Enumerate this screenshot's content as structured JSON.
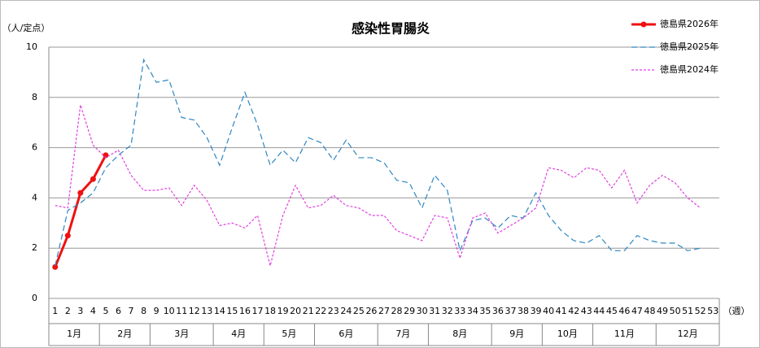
{
  "chart_data": {
    "type": "line",
    "title": "感染性胃腸炎",
    "y_label": "（人/定点）",
    "x_label": "（週）",
    "categories": [
      "1",
      "2",
      "3",
      "4",
      "5",
      "6",
      "7",
      "8",
      "9",
      "10",
      "11",
      "12",
      "13",
      "14",
      "15",
      "16",
      "17",
      "18",
      "19",
      "20",
      "21",
      "22",
      "23",
      "24",
      "25",
      "26",
      "27",
      "28",
      "29",
      "30",
      "31",
      "32",
      "33",
      "34",
      "35",
      "36",
      "37",
      "38",
      "39",
      "40",
      "41",
      "42",
      "43",
      "44",
      "45",
      "46",
      "47",
      "48",
      "49",
      "50",
      "51",
      "52",
      "53"
    ],
    "month_of_week": [
      "1月",
      "1月",
      "1月",
      "1月",
      "2月",
      "2月",
      "2月",
      "2月",
      "3月",
      "3月",
      "3月",
      "3月",
      "3月",
      "4月",
      "4月",
      "4月",
      "4月",
      "5月",
      "5月",
      "5月",
      "5月",
      "6月",
      "6月",
      "6月",
      "6月",
      "6月",
      "7月",
      "7月",
      "7月",
      "7月",
      "8月",
      "8月",
      "8月",
      "8月",
      "8月",
      "9月",
      "9月",
      "9月",
      "9月",
      "10月",
      "10月",
      "10月",
      "10月",
      "11月",
      "11月",
      "11月",
      "11月",
      "11月",
      "12月",
      "12月",
      "12月",
      "12月",
      "12月"
    ],
    "ylim": [
      0,
      10
    ],
    "yticks": [
      0,
      2,
      4,
      6,
      8,
      10
    ],
    "grid": true,
    "legend": "top-right",
    "series": [
      {
        "name": "徳島県2026年",
        "color": "#ee1111",
        "style": "solid",
        "values": [
          1.25,
          2.5,
          4.2,
          4.75,
          5.7,
          null,
          null,
          null,
          null,
          null,
          null,
          null,
          null,
          null,
          null,
          null,
          null,
          null,
          null,
          null,
          null,
          null,
          null,
          null,
          null,
          null,
          null,
          null,
          null,
          null,
          null,
          null,
          null,
          null,
          null,
          null,
          null,
          null,
          null,
          null,
          null,
          null,
          null,
          null,
          null,
          null,
          null,
          null,
          null,
          null,
          null,
          null,
          null
        ]
      },
      {
        "name": "徳島県2025年",
        "color": "#2e86c1",
        "style": "dashed",
        "values": [
          1.3,
          3.5,
          3.8,
          4.2,
          5.2,
          5.7,
          6.1,
          9.5,
          8.6,
          8.7,
          7.2,
          7.1,
          6.4,
          5.3,
          6.8,
          8.2,
          6.9,
          5.3,
          5.9,
          5.4,
          6.4,
          6.2,
          5.5,
          6.3,
          5.6,
          5.6,
          5.4,
          4.7,
          4.6,
          3.6,
          4.9,
          4.3,
          1.9,
          3.1,
          3.2,
          2.8,
          3.3,
          3.2,
          4.2,
          3.3,
          2.7,
          2.3,
          2.2,
          2.5,
          1.9,
          1.9,
          2.5,
          2.3,
          2.2,
          2.2,
          1.9,
          2.0,
          null
        ]
      },
      {
        "name": "徳島県2024年",
        "color": "#e040e0",
        "style": "dotted",
        "values": [
          3.7,
          3.6,
          7.7,
          6.1,
          5.6,
          5.9,
          4.9,
          4.3,
          4.3,
          4.4,
          3.7,
          4.5,
          3.9,
          2.9,
          3.0,
          2.8,
          3.3,
          1.3,
          3.3,
          4.5,
          3.6,
          3.7,
          4.1,
          3.7,
          3.6,
          3.3,
          3.3,
          2.7,
          2.5,
          2.3,
          3.3,
          3.2,
          1.6,
          3.2,
          3.4,
          2.6,
          2.9,
          3.2,
          3.6,
          5.2,
          5.1,
          4.8,
          5.2,
          5.1,
          4.4,
          5.1,
          3.8,
          4.5,
          4.9,
          4.6,
          4.0,
          3.6,
          null
        ]
      }
    ]
  }
}
